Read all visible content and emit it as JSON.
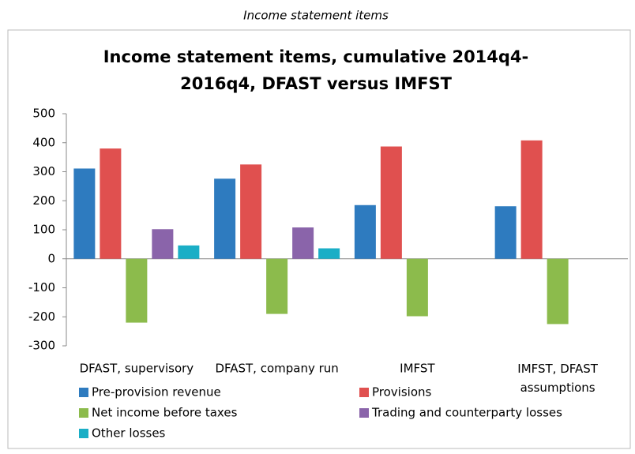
{
  "caption": "Income statement items",
  "chart_data": {
    "type": "bar",
    "title": [
      "Income statement items, cumulative 2014q4-",
      "2016q4, DFAST versus IMFST"
    ],
    "categories": [
      "DFAST, supervisory",
      "DFAST, company run",
      "IMFST",
      "IMFST, DFAST assumptions"
    ],
    "series": [
      {
        "name": "Pre-provision revenue",
        "color": "#2e7bbf",
        "values": [
          311,
          276,
          185,
          181
        ]
      },
      {
        "name": "Provisions",
        "color": "#e0504f",
        "values": [
          380,
          325,
          387,
          408
        ]
      },
      {
        "name": "Net income before taxes",
        "color": "#8cbb4c",
        "values": [
          -220,
          -190,
          -198,
          -225
        ]
      },
      {
        "name": "Trading and counterparty losses",
        "color": "#8a64aa",
        "values": [
          102,
          108,
          null,
          null
        ]
      },
      {
        "name": "Other losses",
        "color": "#1aaec6",
        "values": [
          46,
          36,
          null,
          null
        ]
      }
    ],
    "ylim": [
      -300,
      500
    ],
    "yticks": [
      -300,
      -200,
      -100,
      0,
      100,
      200,
      300,
      400,
      500
    ],
    "grid": false
  }
}
